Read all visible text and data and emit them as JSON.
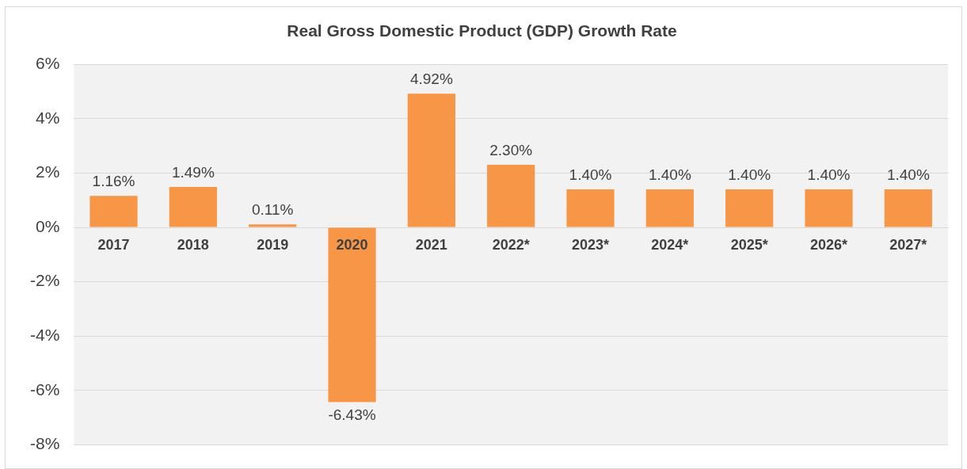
{
  "chart_data": {
    "type": "bar",
    "title": "Real Gross Domestic Product (GDP) Growth Rate",
    "categories": [
      "2017",
      "2018",
      "2019",
      "2020",
      "2021",
      "2022*",
      "2023*",
      "2024*",
      "2025*",
      "2026*",
      "2027*"
    ],
    "values": [
      1.16,
      1.49,
      0.11,
      -6.43,
      4.92,
      2.3,
      1.4,
      1.4,
      1.4,
      1.4,
      1.4
    ],
    "value_labels": [
      "1.16%",
      "1.49%",
      "0.11%",
      "-6.43%",
      "4.92%",
      "2.30%",
      "1.40%",
      "1.40%",
      "1.40%",
      "1.40%",
      "1.40%"
    ],
    "color": "#f79646",
    "ylim": [
      -8,
      6
    ],
    "yticks": [
      {
        "value": -8,
        "label": "-8%"
      },
      {
        "value": -6,
        "label": "-6%"
      },
      {
        "value": -4,
        "label": "-4%"
      },
      {
        "value": -2,
        "label": "-2%"
      },
      {
        "value": 0,
        "label": "0%"
      },
      {
        "value": 2,
        "label": "2%"
      },
      {
        "value": 4,
        "label": "4%"
      },
      {
        "value": 6,
        "label": "6%"
      }
    ],
    "grid": "y"
  }
}
